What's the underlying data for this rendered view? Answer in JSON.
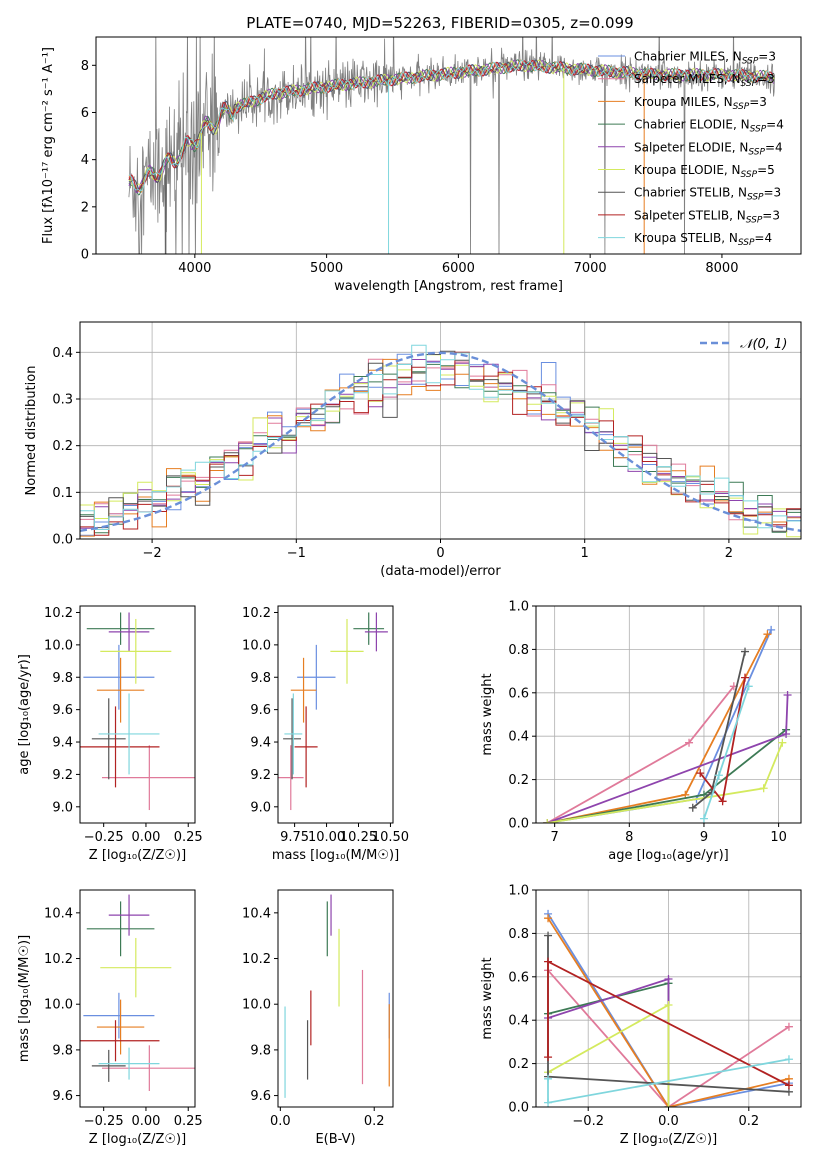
{
  "figure_title": "PLATE=0740, MJD=52263, FIBERID=0305, z=0.099",
  "colors": {
    "Chabrier MILES": "#6a8fe0",
    "Salpeter MILES": "#e07a9a",
    "Kroupa MILES": "#e67e22",
    "Chabrier ELODIE": "#3d7a55",
    "Salpeter ELODIE": "#8e44ad",
    "Kroupa ELODIE": "#d4ea5e",
    "Chabrier STELIB": "#555555",
    "Salpeter STELIB": "#b22222",
    "Kroupa STELIB": "#7fd6dd",
    "data": "#808080",
    "gauss": "#6a8fd8"
  },
  "chart_data": [
    {
      "id": "spectrum",
      "type": "line",
      "title": "PLATE=0740, MJD=52263, FIBERID=0305, z=0.099",
      "xlabel": "wavelength [Angstrom, rest frame]",
      "ylabel": "Flux [fλ10⁻¹⁷ erg cm⁻² s⁻¹ A⁻¹]",
      "xlim": [
        3250,
        8600
      ],
      "ylim": [
        0,
        9.2
      ],
      "xticks": [
        4000,
        5000,
        6000,
        7000,
        8000
      ],
      "yticks": [
        0,
        2,
        4,
        6,
        8
      ],
      "legend_position": "upper right",
      "wave_range": [
        3500,
        8400
      ],
      "continuum": [
        [
          3500,
          2.8
        ],
        [
          3700,
          3.4
        ],
        [
          3900,
          4.3
        ],
        [
          4100,
          5.4
        ],
        [
          4300,
          6.2
        ],
        [
          4600,
          6.8
        ],
        [
          5000,
          7.1
        ],
        [
          5500,
          7.4
        ],
        [
          6000,
          7.7
        ],
        [
          6500,
          8.0
        ],
        [
          7000,
          7.8
        ],
        [
          7500,
          7.6
        ],
        [
          8000,
          7.6
        ],
        [
          8400,
          7.5
        ]
      ],
      "series": [
        {
          "name": "Chabrier MILES, N$_{SSP}$=3"
        },
        {
          "name": "Salpeter MILES, N$_{SSP}$=3"
        },
        {
          "name": "Kroupa MILES, N$_{SSP}$=3"
        },
        {
          "name": "Chabrier ELODIE, N$_{SSP}$=4"
        },
        {
          "name": "Salpeter ELODIE, N$_{SSP}$=4"
        },
        {
          "name": "Kroupa ELODIE, N$_{SSP}$=5"
        },
        {
          "name": "Chabrier STELIB, N$_{SSP}$=3"
        },
        {
          "name": "Salpeter STELIB, N$_{SSP}$=3"
        },
        {
          "name": "Kroupa STELIB, N$_{SSP}$=4"
        }
      ]
    },
    {
      "id": "residuals",
      "type": "line",
      "xlabel": "(data-model)/error",
      "ylabel": "Normed distribution",
      "xlim": [
        -2.5,
        2.5
      ],
      "ylim": [
        0,
        0.465
      ],
      "xticks": [
        -2,
        -1,
        0,
        1,
        2
      ],
      "yticks": [
        0.0,
        0.1,
        0.2,
        0.3,
        0.4
      ],
      "grid": true,
      "legend": "𝒩(0, 1)",
      "legend_position": "upper right",
      "bin_width": 0.1
    },
    {
      "id": "age_vs_Z",
      "type": "scatter",
      "xlabel": "Z [log₁₀(Z/Z☉)]",
      "ylabel": "age  [log₁₀(age/yr)]",
      "xlim": [
        -0.39,
        0.29
      ],
      "ylim": [
        8.9,
        10.24
      ],
      "xticks": [
        -0.25,
        0.0,
        0.25
      ],
      "xticklabels": [
        "−0.25",
        "0.00",
        "0.25"
      ],
      "yticks": [
        9.0,
        9.2,
        9.4,
        9.6,
        9.8,
        10.0,
        10.2
      ],
      "points": [
        {
          "model": "Chabrier MILES",
          "x": -0.16,
          "xerr": 0.21,
          "y": 9.8,
          "yerr": 0.2
        },
        {
          "model": "Salpeter MILES",
          "x": 0.02,
          "xerr": 0.28,
          "y": 9.18,
          "yerr": 0.2
        },
        {
          "model": "Kroupa MILES",
          "x": -0.15,
          "xerr": 0.14,
          "y": 9.72,
          "yerr": 0.2
        },
        {
          "model": "Chabrier ELODIE",
          "x": -0.15,
          "xerr": 0.2,
          "y": 10.1,
          "yerr": 0.1
        },
        {
          "model": "Salpeter ELODIE",
          "x": -0.1,
          "xerr": 0.12,
          "y": 10.08,
          "yerr": 0.12
        },
        {
          "model": "Kroupa ELODIE",
          "x": -0.06,
          "xerr": 0.21,
          "y": 9.96,
          "yerr": 0.2
        },
        {
          "model": "Chabrier STELIB",
          "x": -0.22,
          "xerr": 0.1,
          "y": 9.42,
          "yerr": 0.25
        },
        {
          "model": "Salpeter STELIB",
          "x": -0.18,
          "xerr": 0.26,
          "y": 9.37,
          "yerr": 0.25
        },
        {
          "model": "Kroupa STELIB",
          "x": -0.1,
          "xerr": 0.18,
          "y": 9.45,
          "yerr": 0.25
        }
      ]
    },
    {
      "id": "age_vs_mass",
      "type": "scatter",
      "xlabel": "mass [log₁₀(M/M☉)]",
      "xlim": [
        9.62,
        10.52
      ],
      "ylim": [
        8.9,
        10.24
      ],
      "xticks": [
        9.75,
        10.0,
        10.25,
        10.5
      ],
      "xticklabels": [
        "9.75",
        "10.00",
        "10.25",
        "10.50"
      ],
      "yticks": [
        9.0,
        9.2,
        9.4,
        9.6,
        9.8,
        10.0,
        10.2
      ],
      "points": [
        {
          "model": "Chabrier MILES",
          "x": 9.92,
          "xerr": 0.15,
          "y": 9.8,
          "yerr": 0.2
        },
        {
          "model": "Salpeter MILES",
          "x": 9.72,
          "xerr": 0.1,
          "y": 9.18,
          "yerr": 0.2
        },
        {
          "model": "Kroupa MILES",
          "x": 9.82,
          "xerr": 0.1,
          "y": 9.72,
          "yerr": 0.2
        },
        {
          "model": "Chabrier ELODIE",
          "x": 10.33,
          "xerr": 0.12,
          "y": 10.1,
          "yerr": 0.1
        },
        {
          "model": "Salpeter ELODIE",
          "x": 10.39,
          "xerr": 0.09,
          "y": 10.08,
          "yerr": 0.12
        },
        {
          "model": "Kroupa ELODIE",
          "x": 10.16,
          "xerr": 0.13,
          "y": 9.96,
          "yerr": 0.2
        },
        {
          "model": "Chabrier STELIB",
          "x": 9.73,
          "xerr": 0.07,
          "y": 9.42,
          "yerr": 0.25
        },
        {
          "model": "Salpeter STELIB",
          "x": 9.84,
          "xerr": 0.09,
          "y": 9.37,
          "yerr": 0.25
        },
        {
          "model": "Kroupa STELIB",
          "x": 9.74,
          "xerr": 0.07,
          "y": 9.45,
          "yerr": 0.25
        }
      ]
    },
    {
      "id": "weight_vs_age",
      "type": "line",
      "xlabel": "age  [log₁₀(age/yr)]",
      "ylabel": "mass weight",
      "xlim": [
        6.75,
        10.3
      ],
      "ylim": [
        0,
        1.0
      ],
      "xticks": [
        7,
        8,
        9,
        10
      ],
      "yticks": [
        0.0,
        0.2,
        0.4,
        0.6,
        0.8,
        1.0
      ],
      "grid": true,
      "series": [
        {
          "model": "Chabrier MILES",
          "points": [
            [
              6.9,
              0.0
            ],
            [
              8.9,
              0.11
            ],
            [
              9.9,
              0.89
            ]
          ]
        },
        {
          "model": "Salpeter MILES",
          "points": [
            [
              6.9,
              0.0
            ],
            [
              8.8,
              0.37
            ],
            [
              9.4,
              0.63
            ]
          ]
        },
        {
          "model": "Kroupa MILES",
          "points": [
            [
              6.9,
              0.0
            ],
            [
              8.75,
              0.13
            ],
            [
              9.85,
              0.87
            ]
          ]
        },
        {
          "model": "Chabrier ELODIE",
          "points": [
            [
              6.9,
              0.0
            ],
            [
              9.0,
              0.13
            ],
            [
              10.1,
              0.43
            ]
          ]
        },
        {
          "model": "Salpeter ELODIE",
          "points": [
            [
              6.9,
              0.0
            ],
            [
              10.1,
              0.41
            ],
            [
              10.12,
              0.59
            ]
          ]
        },
        {
          "model": "Kroupa ELODIE",
          "points": [
            [
              6.9,
              0.0
            ],
            [
              9.8,
              0.16
            ],
            [
              10.05,
              0.37
            ]
          ]
        },
        {
          "model": "Chabrier STELIB",
          "points": [
            [
              8.85,
              0.07
            ],
            [
              9.1,
              0.14
            ],
            [
              9.55,
              0.79
            ]
          ]
        },
        {
          "model": "Salpeter STELIB",
          "points": [
            [
              8.95,
              0.23
            ],
            [
              9.25,
              0.1
            ],
            [
              9.55,
              0.67
            ]
          ]
        },
        {
          "model": "Kroupa STELIB",
          "points": [
            [
              9.0,
              0.02
            ],
            [
              9.2,
              0.22
            ],
            [
              9.6,
              0.63
            ]
          ]
        }
      ]
    },
    {
      "id": "mass_vs_Z",
      "type": "scatter",
      "xlabel": "Z [log₁₀(Z/Z☉)]",
      "ylabel": "mass [log₁₀(M/M☉)]",
      "xlim": [
        -0.39,
        0.29
      ],
      "ylim": [
        9.55,
        10.5
      ],
      "xticks": [
        -0.25,
        0.0,
        0.25
      ],
      "xticklabels": [
        "−0.25",
        "0.00",
        "0.25"
      ],
      "yticks": [
        9.6,
        9.8,
        10.0,
        10.2,
        10.4
      ],
      "points": [
        {
          "model": "Chabrier MILES",
          "x": -0.16,
          "xerr": 0.21,
          "y": 9.95,
          "yerr": 0.1
        },
        {
          "model": "Salpeter MILES",
          "x": 0.02,
          "xerr": 0.28,
          "y": 9.72,
          "yerr": 0.1
        },
        {
          "model": "Kroupa MILES",
          "x": -0.15,
          "xerr": 0.14,
          "y": 9.9,
          "yerr": 0.12
        },
        {
          "model": "Chabrier ELODIE",
          "x": -0.15,
          "xerr": 0.2,
          "y": 10.33,
          "yerr": 0.12
        },
        {
          "model": "Salpeter ELODIE",
          "x": -0.1,
          "xerr": 0.12,
          "y": 10.39,
          "yerr": 0.09
        },
        {
          "model": "Kroupa ELODIE",
          "x": -0.06,
          "xerr": 0.21,
          "y": 10.16,
          "yerr": 0.13
        },
        {
          "model": "Chabrier STELIB",
          "x": -0.22,
          "xerr": 0.1,
          "y": 9.73,
          "yerr": 0.07
        },
        {
          "model": "Salpeter STELIB",
          "x": -0.18,
          "xerr": 0.26,
          "y": 9.84,
          "yerr": 0.09
        },
        {
          "model": "Kroupa STELIB",
          "x": -0.1,
          "xerr": 0.18,
          "y": 9.74,
          "yerr": 0.07
        }
      ]
    },
    {
      "id": "mass_vs_ebv",
      "type": "scatter",
      "xlabel": "E(B-V)",
      "xlim": [
        -0.005,
        0.24
      ],
      "ylim": [
        9.55,
        10.5
      ],
      "xticks": [
        0.0,
        0.2
      ],
      "xticklabels": [
        "0.0",
        "0.2"
      ],
      "yticks": [
        9.6,
        9.8,
        10.0,
        10.2,
        10.4
      ],
      "points": [
        {
          "model": "Chabrier MILES",
          "x": 0.232,
          "y": 9.95,
          "yerr": 0.1
        },
        {
          "model": "Salpeter MILES",
          "x": 0.175,
          "y": 9.9,
          "yerr": 0.25
        },
        {
          "model": "Kroupa MILES",
          "x": 0.232,
          "y": 9.82,
          "yerr": 0.18
        },
        {
          "model": "Chabrier ELODIE",
          "x": 0.1,
          "y": 10.33,
          "yerr": 0.12
        },
        {
          "model": "Salpeter ELODIE",
          "x": 0.108,
          "y": 10.39,
          "yerr": 0.09
        },
        {
          "model": "Kroupa ELODIE",
          "x": 0.125,
          "y": 10.16,
          "yerr": 0.17
        },
        {
          "model": "Chabrier STELIB",
          "x": 0.058,
          "y": 9.8,
          "yerr": 0.13
        },
        {
          "model": "Salpeter STELIB",
          "x": 0.065,
          "y": 9.94,
          "yerr": 0.12
        },
        {
          "model": "Kroupa STELIB",
          "x": 0.01,
          "y": 9.79,
          "yerr": 0.2
        }
      ]
    },
    {
      "id": "weight_vs_Z",
      "type": "line",
      "xlabel": "Z [log₁₀(Z/Z☉)]",
      "ylabel": "mass weight",
      "xlim": [
        -0.33,
        0.33
      ],
      "ylim": [
        0,
        1.0
      ],
      "xticks": [
        -0.2,
        0.0,
        0.2
      ],
      "xticklabels": [
        "−0.2",
        "0.0",
        "0.2"
      ],
      "yticks": [
        0.0,
        0.2,
        0.4,
        0.6,
        0.8,
        1.0
      ],
      "grid": true,
      "series": [
        {
          "model": "Chabrier MILES",
          "points": [
            [
              -0.3,
              0.89
            ],
            [
              0.0,
              0.0
            ],
            [
              0.3,
              0.11
            ]
          ]
        },
        {
          "model": "Salpeter MILES",
          "points": [
            [
              -0.3,
              0.63
            ],
            [
              0.0,
              0.0
            ],
            [
              0.3,
              0.37
            ]
          ]
        },
        {
          "model": "Kroupa MILES",
          "points": [
            [
              -0.3,
              0.87
            ],
            [
              0.0,
              0.0
            ],
            [
              0.3,
              0.13
            ]
          ]
        },
        {
          "model": "Chabrier ELODIE",
          "points": [
            [
              -0.3,
              0.43
            ],
            [
              0.0,
              0.57
            ],
            [
              0.0,
              0.0
            ]
          ]
        },
        {
          "model": "Salpeter ELODIE",
          "points": [
            [
              -0.3,
              0.41
            ],
            [
              0.0,
              0.59
            ],
            [
              0.0,
              0.0
            ]
          ]
        },
        {
          "model": "Kroupa ELODIE",
          "points": [
            [
              -0.3,
              0.16
            ],
            [
              0.0,
              0.47
            ],
            [
              0.0,
              0.0
            ]
          ]
        },
        {
          "model": "Chabrier STELIB",
          "points": [
            [
              -0.3,
              0.79
            ],
            [
              -0.3,
              0.14
            ],
            [
              0.3,
              0.07
            ]
          ]
        },
        {
          "model": "Salpeter STELIB",
          "points": [
            [
              -0.3,
              0.23
            ],
            [
              -0.3,
              0.67
            ],
            [
              0.3,
              0.1
            ]
          ]
        },
        {
          "model": "Kroupa STELIB",
          "points": [
            [
              -0.3,
              0.13
            ],
            [
              -0.3,
              0.02
            ],
            [
              0.3,
              0.22
            ]
          ]
        }
      ]
    }
  ]
}
